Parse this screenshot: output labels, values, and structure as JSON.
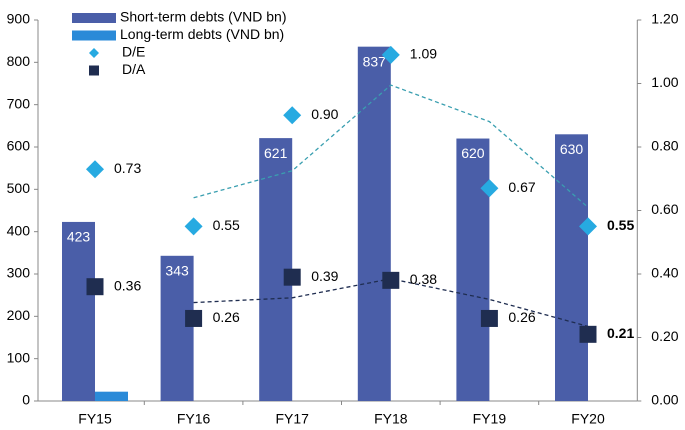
{
  "chart_data": {
    "type": "bar_scatter",
    "categories": [
      "FY15",
      "FY16",
      "FY17",
      "FY18",
      "FY19",
      "FY20"
    ],
    "series": [
      {
        "name": "Short-term debts (VND bn)",
        "color": "#4a5ea8",
        "type": "bar",
        "values": [
          423,
          343,
          621,
          837,
          620,
          630
        ]
      },
      {
        "name": "Long-term debts (VND bn)",
        "color": "#2a8ad8",
        "type": "bar",
        "values": [
          22,
          0,
          0,
          0,
          0,
          0
        ]
      },
      {
        "name": "D/E",
        "color": "#27aae1",
        "type": "scatter",
        "marker": "diamond",
        "axis": "y2",
        "values": [
          0.73,
          0.55,
          0.9,
          1.09,
          0.67,
          0.55
        ],
        "value_labels": [
          "0.73",
          "0.55",
          "0.90",
          "1.09",
          "0.67",
          "0.55"
        ],
        "moving_average": [
          null,
          0.64,
          0.725,
          0.995,
          0.88,
          0.61
        ],
        "moving_average_color": "#3a9fb0"
      },
      {
        "name": "D/A",
        "color": "#1f2d50",
        "type": "scatter",
        "marker": "square",
        "axis": "y2",
        "values": [
          0.36,
          0.26,
          0.39,
          0.38,
          0.26,
          0.21
        ],
        "value_labels": [
          "0.36",
          "0.26",
          "0.39",
          "0.38",
          "0.26",
          "0.21"
        ],
        "moving_average": [
          null,
          0.31,
          0.325,
          0.385,
          0.32,
          0.235
        ],
        "moving_average_color": "#1f2d50"
      }
    ],
    "bold_last_label": true,
    "ylim": [
      0,
      900
    ],
    "yticks": [
      0,
      100,
      200,
      300,
      400,
      500,
      600,
      700,
      800,
      900
    ],
    "y2lim": [
      0,
      1.2
    ],
    "y2ticks": [
      {
        "value": 0,
        "label": "0.00"
      },
      {
        "value": 0.2,
        "label": "0.20"
      },
      {
        "value": 0.4,
        "label": "0.40"
      },
      {
        "value": 0.6,
        "label": "0.60"
      },
      {
        "value": 0.8,
        "label": "0.80"
      },
      {
        "value": 1,
        "label": "1.00"
      },
      {
        "value": 1.2,
        "label": "1.20"
      }
    ],
    "legend": "top-left"
  }
}
